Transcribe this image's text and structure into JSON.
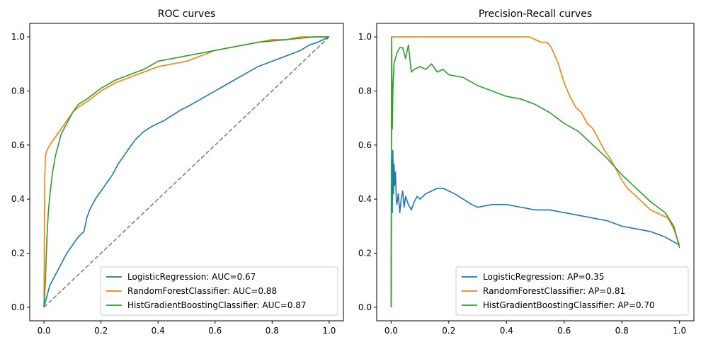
{
  "chart_data": [
    {
      "type": "line",
      "title": "ROC curves",
      "xlabel": "",
      "ylabel": "",
      "xlim": [
        -0.05,
        1.05
      ],
      "ylim": [
        -0.05,
        1.05
      ],
      "xticks": [
        "0.0",
        "0.2",
        "0.4",
        "0.6",
        "0.8",
        "1.0"
      ],
      "yticks": [
        "0.0",
        "0.2",
        "0.4",
        "0.6",
        "0.8",
        "1.0"
      ],
      "grid": false,
      "legend_position": "bottom-right",
      "reference_line": {
        "x": [
          0,
          1
        ],
        "y": [
          0,
          1
        ],
        "color": "#808080",
        "style": "dashed"
      },
      "series": [
        {
          "name": "LogisticRegression: AUC=0.67",
          "color": "#1f77b4",
          "x": [
            0,
            0.005,
            0.01,
            0.02,
            0.04,
            0.06,
            0.08,
            0.1,
            0.12,
            0.14,
            0.15,
            0.16,
            0.18,
            0.2,
            0.22,
            0.24,
            0.26,
            0.28,
            0.3,
            0.32,
            0.35,
            0.38,
            0.4,
            0.42,
            0.45,
            0.48,
            0.5,
            0.55,
            0.6,
            0.65,
            0.7,
            0.75,
            0.8,
            0.85,
            0.9,
            0.93,
            0.96,
            0.98,
            1.0
          ],
          "y": [
            0,
            0.02,
            0.04,
            0.08,
            0.12,
            0.16,
            0.2,
            0.23,
            0.26,
            0.28,
            0.33,
            0.36,
            0.4,
            0.43,
            0.46,
            0.49,
            0.53,
            0.56,
            0.59,
            0.62,
            0.65,
            0.67,
            0.68,
            0.69,
            0.71,
            0.73,
            0.74,
            0.77,
            0.8,
            0.83,
            0.86,
            0.89,
            0.91,
            0.93,
            0.95,
            0.97,
            0.98,
            0.99,
            1.0
          ]
        },
        {
          "name": "RandomForestClassifier: AUC=0.88",
          "color": "#ff7f0e",
          "x": [
            0,
            0.002,
            0.005,
            0.01,
            0.02,
            0.04,
            0.06,
            0.08,
            0.1,
            0.12,
            0.15,
            0.2,
            0.25,
            0.3,
            0.35,
            0.4,
            0.45,
            0.5,
            0.55,
            0.6,
            0.65,
            0.7,
            0.75,
            0.8,
            0.85,
            0.9,
            0.95,
            1.0
          ],
          "y": [
            0,
            0.45,
            0.56,
            0.58,
            0.6,
            0.63,
            0.66,
            0.69,
            0.72,
            0.74,
            0.76,
            0.8,
            0.83,
            0.85,
            0.87,
            0.89,
            0.9,
            0.91,
            0.93,
            0.95,
            0.96,
            0.97,
            0.98,
            0.99,
            0.99,
            1.0,
            1.0,
            1.0
          ]
        },
        {
          "name": "HistGradientBoostingClassifier: AUC=0.87",
          "color": "#2ca02c",
          "x": [
            0,
            0.005,
            0.01,
            0.015,
            0.02,
            0.03,
            0.04,
            0.05,
            0.06,
            0.07,
            0.08,
            0.1,
            0.12,
            0.15,
            0.2,
            0.25,
            0.3,
            0.35,
            0.4,
            0.45,
            0.5,
            0.55,
            0.6,
            0.65,
            0.7,
            0.75,
            0.8,
            0.85,
            0.9,
            0.95,
            1.0
          ],
          "y": [
            0,
            0.1,
            0.25,
            0.35,
            0.41,
            0.5,
            0.56,
            0.6,
            0.64,
            0.66,
            0.68,
            0.72,
            0.75,
            0.77,
            0.81,
            0.84,
            0.86,
            0.88,
            0.91,
            0.92,
            0.93,
            0.94,
            0.95,
            0.96,
            0.97,
            0.98,
            0.985,
            0.99,
            0.995,
            1.0,
            1.0
          ]
        }
      ]
    },
    {
      "type": "line",
      "title": "Precision-Recall curves",
      "xlabel": "",
      "ylabel": "",
      "xlim": [
        -0.05,
        1.05
      ],
      "ylim": [
        -0.05,
        1.05
      ],
      "xticks": [
        "0.0",
        "0.2",
        "0.4",
        "0.6",
        "0.8",
        "1.0"
      ],
      "yticks": [
        "0.0",
        "0.2",
        "0.4",
        "0.6",
        "0.8",
        "1.0"
      ],
      "grid": false,
      "legend_position": "bottom-right",
      "series": [
        {
          "name": "LogisticRegression: AP=0.35",
          "color": "#1f77b4",
          "x": [
            0,
            0.002,
            0.004,
            0.006,
            0.008,
            0.01,
            0.012,
            0.015,
            0.018,
            0.02,
            0.025,
            0.03,
            0.035,
            0.04,
            0.045,
            0.05,
            0.06,
            0.07,
            0.08,
            0.09,
            0.1,
            0.12,
            0.14,
            0.16,
            0.18,
            0.2,
            0.22,
            0.25,
            0.28,
            0.3,
            0.35,
            0.4,
            0.45,
            0.5,
            0.55,
            0.6,
            0.65,
            0.7,
            0.75,
            0.8,
            0.85,
            0.9,
            0.95,
            1.0
          ],
          "y": [
            0,
            0.55,
            0.35,
            0.58,
            0.42,
            0.53,
            0.45,
            0.5,
            0.4,
            0.38,
            0.42,
            0.35,
            0.4,
            0.43,
            0.37,
            0.41,
            0.38,
            0.36,
            0.39,
            0.41,
            0.4,
            0.42,
            0.43,
            0.44,
            0.44,
            0.43,
            0.42,
            0.4,
            0.38,
            0.37,
            0.38,
            0.38,
            0.37,
            0.36,
            0.36,
            0.35,
            0.34,
            0.33,
            0.32,
            0.3,
            0.29,
            0.28,
            0.26,
            0.23
          ]
        },
        {
          "name": "RandomForestClassifier: AP=0.81",
          "color": "#ff7f0e",
          "x": [
            0,
            0.002,
            0.01,
            0.1,
            0.2,
            0.3,
            0.4,
            0.48,
            0.5,
            0.52,
            0.54,
            0.55,
            0.56,
            0.58,
            0.6,
            0.62,
            0.64,
            0.66,
            0.68,
            0.7,
            0.72,
            0.74,
            0.76,
            0.78,
            0.8,
            0.82,
            0.84,
            0.86,
            0.88,
            0.9,
            0.92,
            0.94,
            0.96,
            0.98,
            1.0
          ],
          "y": [
            0,
            1.0,
            1.0,
            1.0,
            1.0,
            1.0,
            1.0,
            1.0,
            0.99,
            0.98,
            0.98,
            0.97,
            0.95,
            0.9,
            0.83,
            0.78,
            0.74,
            0.72,
            0.68,
            0.66,
            0.62,
            0.58,
            0.55,
            0.51,
            0.47,
            0.44,
            0.42,
            0.4,
            0.38,
            0.36,
            0.35,
            0.34,
            0.33,
            0.29,
            0.23
          ]
        },
        {
          "name": "HistGradientBoostingClassifier: AP=0.70",
          "color": "#2ca02c",
          "x": [
            0,
            0.002,
            0.004,
            0.006,
            0.01,
            0.02,
            0.03,
            0.04,
            0.05,
            0.06,
            0.07,
            0.08,
            0.1,
            0.12,
            0.14,
            0.16,
            0.18,
            0.2,
            0.25,
            0.3,
            0.35,
            0.4,
            0.45,
            0.5,
            0.55,
            0.6,
            0.65,
            0.7,
            0.75,
            0.8,
            0.85,
            0.9,
            0.95,
            0.98,
            1.0
          ],
          "y": [
            0,
            1.0,
            0.66,
            0.8,
            0.9,
            0.94,
            0.96,
            0.96,
            0.92,
            0.97,
            0.87,
            0.88,
            0.89,
            0.88,
            0.9,
            0.87,
            0.88,
            0.86,
            0.85,
            0.82,
            0.8,
            0.78,
            0.77,
            0.75,
            0.72,
            0.68,
            0.65,
            0.6,
            0.55,
            0.49,
            0.44,
            0.39,
            0.35,
            0.3,
            0.22
          ]
        }
      ]
    }
  ]
}
